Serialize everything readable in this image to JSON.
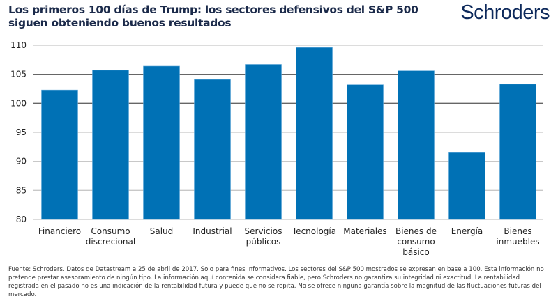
{
  "header": {
    "title": "Los primeros 100 días de Trump: los sectores defensivos del S&P 500 siguen obteniendo buenos resultados",
    "logo": "Schroders"
  },
  "chart_data": {
    "type": "bar",
    "title": "Los primeros 100 días de Trump: los sectores defensivos del S&P 500 siguen obteniendo buenos resultados",
    "categories": [
      [
        "Financiero"
      ],
      [
        "Consumo",
        "discrecional"
      ],
      [
        "Salud"
      ],
      [
        "Industrial"
      ],
      [
        "Servicios",
        "públicos"
      ],
      [
        "Tecnología"
      ],
      [
        "Materiales"
      ],
      [
        "Bienes de",
        "consumo",
        "básico"
      ],
      [
        "Energía"
      ],
      [
        "Bienes",
        "inmuebles"
      ]
    ],
    "values": [
      102.3,
      105.7,
      106.4,
      104.1,
      106.7,
      109.6,
      103.2,
      105.6,
      91.6,
      103.3
    ],
    "ylim": [
      80,
      110
    ],
    "yticks": [
      80,
      85,
      90,
      95,
      100,
      105,
      110
    ],
    "grid": true,
    "bar_color": "#0071b5",
    "xlabel": "",
    "ylabel": ""
  },
  "footer": {
    "text": "Fuente: Schroders. Datos de Datastream a 25 de abril de 2017. Solo para fines informativos. Los sectores del S&P 500 mostrados se expresan en base a 100. Esta información no pretende prestar asesoramiento de ningún tipo. La información aquí contenida se considera fiable, pero Schroders no garantiza su integridad ni exactitud. La rentabilidad registrada en el pasado no es una indicación de la rentabilidad futura y puede que no se repita. No se ofrece ninguna garantía sobre la magnitud de las fluctuaciones futuras del mercado."
  }
}
